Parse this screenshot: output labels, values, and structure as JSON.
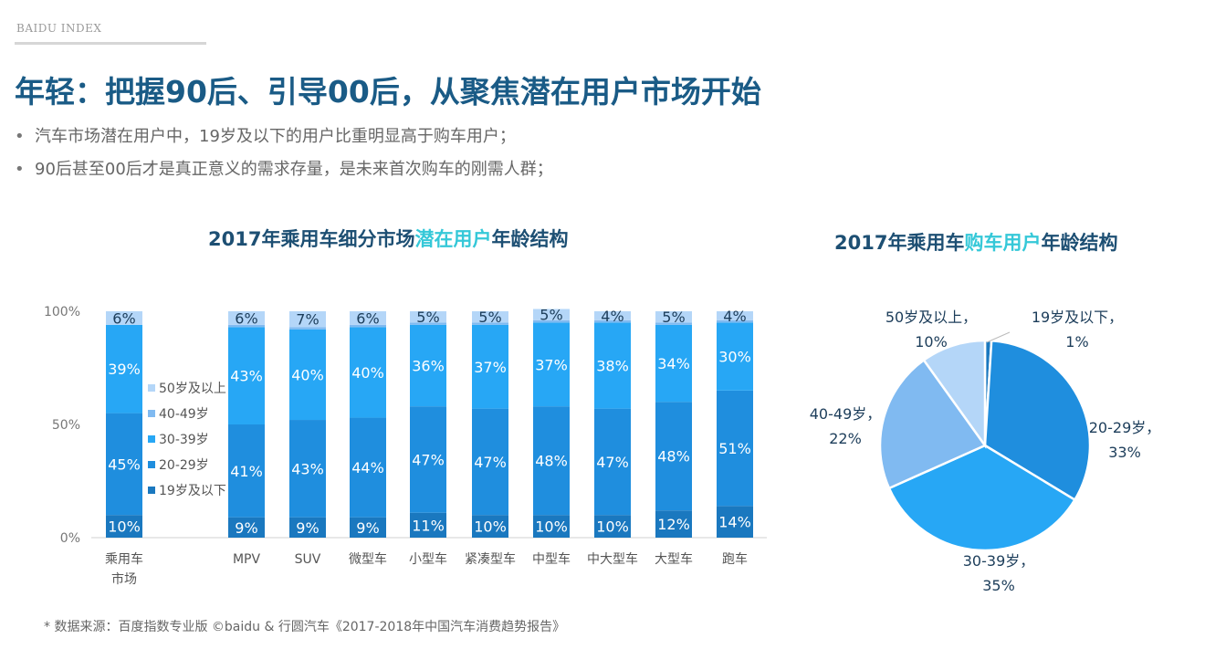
{
  "header": {
    "brand": "BAIDU INDEX",
    "title": "年轻：把握90后、引导00后，从聚焦潜在用户市场开始",
    "bullets": [
      "汽车市场潜在用户中，19岁及以下的用户比重明显高于购车用户；",
      "90后甚至00后才是真正意义的需求存量，是未来首次购车的刚需人群；"
    ],
    "bullet_mark": "•"
  },
  "colors": {
    "title": "#1a5b86",
    "highlight": "#35c8d8",
    "age_19_below": "#1a78bf",
    "age_20_29": "#1f8ede",
    "age_30_39": "#27a7f5",
    "age_40_49": "#80baf1",
    "age_50_plus": "#b4d6f8"
  },
  "chart_data": [
    {
      "type": "bar",
      "stacked": true,
      "title_parts": [
        "2017年乘用车细分市场",
        "潜在用户",
        "年龄结构"
      ],
      "categories": [
        [
          "乘用车",
          "市场"
        ],
        [
          "MPV"
        ],
        [
          "SUV"
        ],
        [
          "微型车"
        ],
        [
          "小型车"
        ],
        [
          "紧凑型车"
        ],
        [
          "中型车"
        ],
        [
          "中大型车"
        ],
        [
          "大型车"
        ],
        [
          "跑车"
        ]
      ],
      "y_ticks": [
        "0%",
        "50%",
        "100%"
      ],
      "ylim": [
        0,
        100
      ],
      "series": [
        {
          "name": "19岁及以下",
          "color": "#1a78bf",
          "values": [
            10,
            9,
            9,
            9,
            11,
            10,
            10,
            10,
            12,
            14
          ]
        },
        {
          "name": "20-29岁",
          "color": "#1f8ede",
          "values": [
            45,
            41,
            43,
            44,
            47,
            47,
            48,
            47,
            48,
            51
          ]
        },
        {
          "name": "30-39岁",
          "color": "#27a7f5",
          "values": [
            39,
            43,
            40,
            40,
            36,
            37,
            37,
            38,
            34,
            30
          ]
        },
        {
          "name": "40-49岁",
          "color": "#80baf1",
          "values": [
            0,
            1,
            1,
            1,
            1,
            1,
            1,
            1,
            1,
            1
          ]
        },
        {
          "name": "50岁及以上",
          "color": "#b4d6f8",
          "values": [
            6,
            6,
            7,
            6,
            5,
            5,
            5,
            4,
            5,
            4
          ]
        }
      ],
      "legend_order": [
        "50岁及以上",
        "40-49岁",
        "30-39岁",
        "20-29岁",
        "19岁及以下"
      ],
      "grid": false
    },
    {
      "type": "pie",
      "title_parts": [
        "2017年乘用车",
        "购车用户",
        "年龄结构"
      ],
      "slices": [
        {
          "name": "19岁及以下",
          "value": 1,
          "label": "1%",
          "color": "#1a78bf"
        },
        {
          "name": "20-29岁",
          "value": 33,
          "label": "33%",
          "color": "#1f8ede"
        },
        {
          "name": "30-39岁",
          "value": 35,
          "label": "35%",
          "color": "#27a7f5"
        },
        {
          "name": "40-49岁",
          "value": 22,
          "label": "22%",
          "color": "#80baf1"
        },
        {
          "name": "50岁及以上",
          "value": 10,
          "label": "10%",
          "color": "#b4d6f8"
        }
      ],
      "slice_labels": [
        {
          "name": "19岁及以下，",
          "pct": "1%"
        },
        {
          "name": "20-29岁，",
          "pct": "33%"
        },
        {
          "name": "30-39岁，",
          "pct": "35%"
        },
        {
          "name": "40-49岁，",
          "pct": "22%"
        },
        {
          "name": "50岁及以上，",
          "pct": "10%"
        }
      ]
    }
  ],
  "footer": {
    "source": "* 数据来源：百度指数专业版 ©baidu & 行圆汽车《2017-2018年中国汽车消费趋势报告》"
  }
}
